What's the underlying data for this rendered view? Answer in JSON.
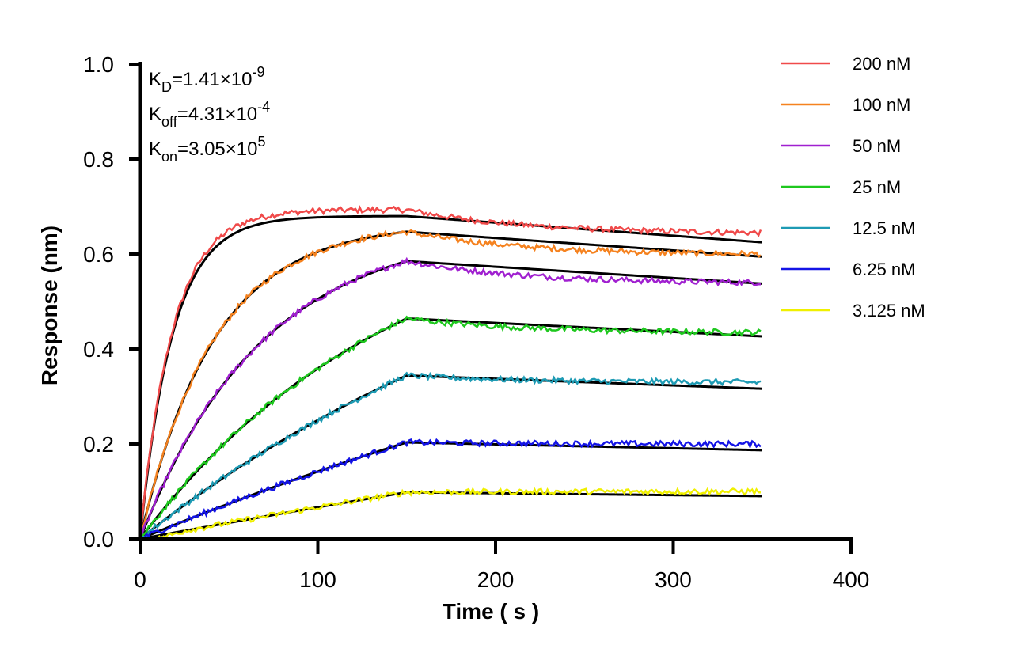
{
  "chart_data": {
    "type": "line",
    "title": "",
    "xlabel": "Time ( s )",
    "ylabel": "Response (nm)",
    "xlim": [
      0,
      400
    ],
    "ylim": [
      0,
      1.0
    ],
    "x_ticks": [
      "0",
      "100",
      "200",
      "300",
      "400"
    ],
    "y_ticks": [
      "0.0",
      "0.2",
      "0.4",
      "0.6",
      "0.8",
      "1.0"
    ],
    "grid": false,
    "legend_position": "top-right",
    "association_end": 150,
    "dissociation_end": 350,
    "annotations": [
      {
        "base": "K",
        "sub": "D",
        "value": "=1.41×10",
        "exp": "-9"
      },
      {
        "base": "K",
        "sub": "off",
        "value": "=4.31×10",
        "exp": "-4"
      },
      {
        "base": "K",
        "sub": "on",
        "value": "=3.05×10",
        "exp": "5"
      }
    ],
    "fit_color": "#000000",
    "series": [
      {
        "name": "200 nM",
        "color": "#f04a4a",
        "plateau": 0.68,
        "kobs": 0.055,
        "end": 0.645
      },
      {
        "name": "100 nM",
        "color": "#f5821f",
        "plateau": 0.665,
        "kobs": 0.024,
        "end": 0.6
      },
      {
        "name": "50 nM",
        "color": "#a020d0",
        "plateau": 0.66,
        "kobs": 0.0145,
        "end": 0.54
      },
      {
        "name": "25 nM",
        "color": "#1ec81e",
        "plateau": 0.72,
        "kobs": 0.0069,
        "end": 0.435
      },
      {
        "name": "12.5 nM",
        "color": "#1e9bb4",
        "plateau": 0.8,
        "kobs": 0.00375,
        "end": 0.33
      },
      {
        "name": "6.25 nM",
        "color": "#1414e6",
        "plateau": 0.82,
        "kobs": 0.0019,
        "end": 0.2
      },
      {
        "name": "3.125 nM",
        "color": "#f0f000",
        "plateau": 0.9,
        "kobs": 0.00077,
        "end": 0.1
      }
    ]
  }
}
